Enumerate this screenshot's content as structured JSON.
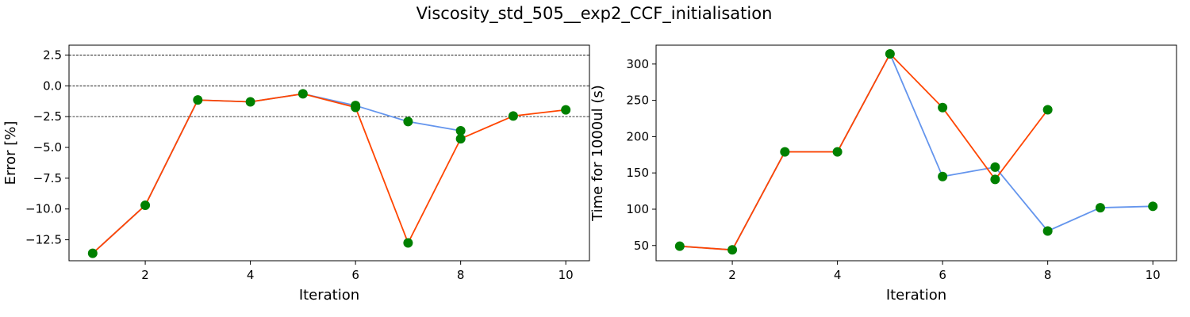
{
  "title": "Viscosity_std_505__exp2_CCF_initialisation",
  "colors": {
    "series_a": "#6495ed",
    "series_b": "#ff4500",
    "markers": "#008000",
    "ref_lines": "#000000"
  },
  "chart_data": [
    {
      "type": "line",
      "xlabel": "Iteration",
      "ylabel": "Error [%]",
      "xlim": [
        0.55,
        10.45
      ],
      "ylim": [
        -14.2,
        3.3
      ],
      "xticks": [
        2,
        4,
        6,
        8,
        10
      ],
      "yticks": [
        2.5,
        0.0,
        -2.5,
        -5.0,
        -7.5,
        -10.0,
        -12.5
      ],
      "ytick_labels": [
        "2.5",
        "0.0",
        "−2.5",
        "−5.0",
        "−7.5",
        "−10.0",
        "−12.5"
      ],
      "reference_lines": [
        2.5,
        0.0,
        -2.5
      ],
      "grid": false,
      "series": [
        {
          "x": [
            1,
            2,
            3,
            4,
            5,
            6,
            7,
            8
          ],
          "values": [
            -13.6,
            -9.7,
            -1.15,
            -1.3,
            -0.65,
            -1.6,
            -2.9,
            -3.65
          ]
        },
        {
          "x": [
            1,
            2,
            3,
            4,
            5,
            6,
            7,
            8,
            9,
            10
          ],
          "values": [
            -13.6,
            -9.7,
            -1.15,
            -1.3,
            -0.65,
            -1.75,
            -12.75,
            -4.3,
            -2.45,
            -1.95
          ]
        }
      ],
      "markers": {
        "x": [
          1,
          2,
          3,
          4,
          5,
          6,
          7,
          8,
          9,
          10,
          6,
          7,
          8
        ],
        "values": [
          -13.6,
          -9.7,
          -1.15,
          -1.3,
          -0.65,
          -1.6,
          -2.9,
          -3.65,
          -2.45,
          -1.95,
          -1.75,
          -12.75,
          -4.3
        ]
      }
    },
    {
      "type": "line",
      "xlabel": "Iteration",
      "ylabel": "Time for 1000ul (s)",
      "xlim": [
        0.55,
        10.45
      ],
      "ylim": [
        29,
        326
      ],
      "xticks": [
        2,
        4,
        6,
        8,
        10
      ],
      "yticks": [
        50,
        100,
        150,
        200,
        250,
        300
      ],
      "ytick_labels": [
        "50",
        "100",
        "150",
        "200",
        "250",
        "300"
      ],
      "reference_lines": [],
      "grid": false,
      "series": [
        {
          "x": [
            1,
            2,
            3,
            4,
            5,
            6,
            7,
            8,
            9,
            10
          ],
          "values": [
            49,
            44,
            179,
            179,
            314,
            145,
            158,
            70,
            102,
            104
          ]
        },
        {
          "x": [
            1,
            2,
            3,
            4,
            5,
            6,
            7,
            8
          ],
          "values": [
            49,
            44,
            179,
            179,
            314,
            240,
            141,
            237
          ]
        }
      ],
      "markers": {
        "x": [
          1,
          2,
          3,
          4,
          5,
          6,
          7,
          8,
          9,
          10,
          6,
          7,
          8
        ],
        "values": [
          49,
          44,
          179,
          179,
          314,
          145,
          158,
          70,
          102,
          104,
          240,
          141,
          237
        ]
      }
    }
  ]
}
